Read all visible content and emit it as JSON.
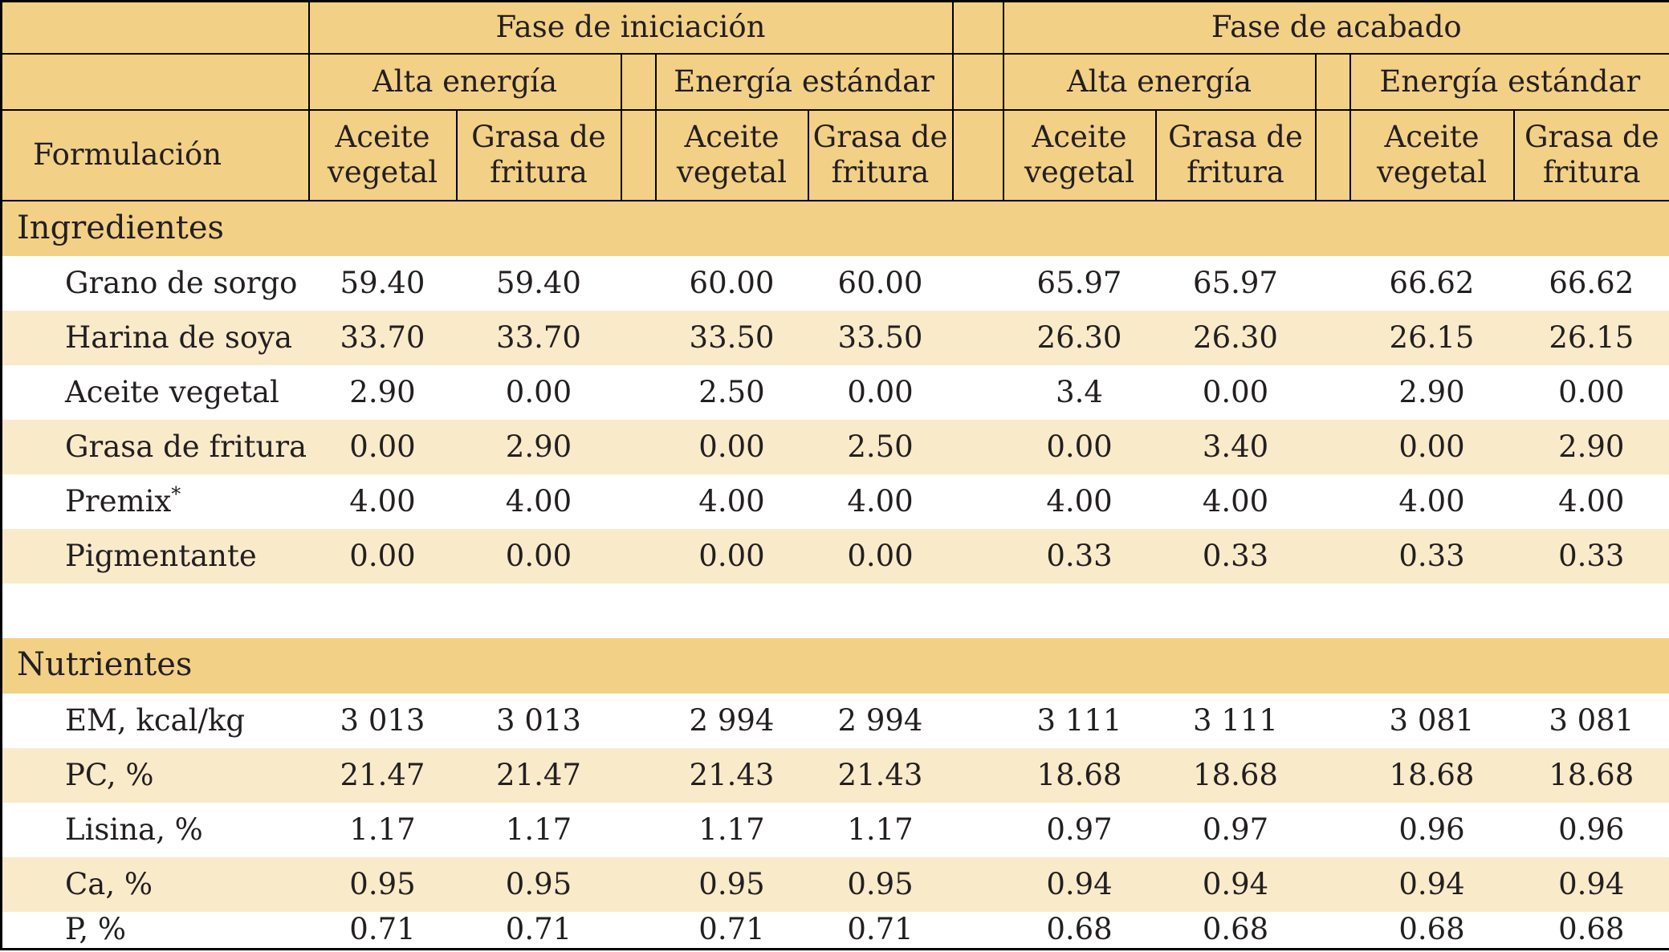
{
  "colors": {
    "header_gold": "#f2d086",
    "row_stripe_cream": "#f9eaca",
    "border_black": "#000000",
    "text_dark": "#231f20",
    "row_white": "#ffffff"
  },
  "header": {
    "corner_label": "Formulación",
    "phase_initiation": "Fase de iniciación",
    "phase_finishing": "Fase de acabado",
    "energy_high": "Alta energía",
    "energy_standard": "Energía estándar",
    "diet_oil": "Aceite vegetal",
    "diet_fat": "Grasa de fritura"
  },
  "sections": [
    {
      "title": "Ingredientes",
      "rows": [
        {
          "label": "Grano de sorgo",
          "values": [
            "59.40",
            "59.40",
            "60.00",
            "60.00",
            "65.97",
            "65.97",
            "66.62",
            "66.62"
          ]
        },
        {
          "label": "Harina de soya",
          "values": [
            "33.70",
            "33.70",
            "33.50",
            "33.50",
            "26.30",
            "26.30",
            "26.15",
            "26.15"
          ]
        },
        {
          "label": "Aceite vegetal",
          "values": [
            "2.90",
            "0.00",
            "2.50",
            "0.00",
            "3.4",
            "0.00",
            "2.90",
            "0.00"
          ]
        },
        {
          "label": "Grasa de fritura",
          "values": [
            "0.00",
            "2.90",
            "0.00",
            "2.50",
            "0.00",
            "3.40",
            "0.00",
            "2.90"
          ]
        },
        {
          "label": "Premix",
          "sup": "*",
          "values": [
            "4.00",
            "4.00",
            "4.00",
            "4.00",
            "4.00",
            "4.00",
            "4.00",
            "4.00"
          ]
        },
        {
          "label": "Pigmentante",
          "values": [
            "0.00",
            "0.00",
            "0.00",
            "0.00",
            "0.33",
            "0.33",
            "0.33",
            "0.33"
          ]
        }
      ]
    },
    {
      "title": "Nutrientes",
      "rows": [
        {
          "label": "EM, kcal/kg",
          "values": [
            "3 013",
            "3 013",
            "2 994",
            "2 994",
            "3 111",
            "3 111",
            "3 081",
            "3 081"
          ]
        },
        {
          "label": "PC, %",
          "values": [
            "21.47",
            "21.47",
            "21.43",
            "21.43",
            "18.68",
            "18.68",
            "18.68",
            "18.68"
          ]
        },
        {
          "label": "Lisina, %",
          "values": [
            "1.17",
            "1.17",
            "1.17",
            "1.17",
            "0.97",
            "0.97",
            "0.96",
            "0.96"
          ]
        },
        {
          "label": "Ca, %",
          "values": [
            "0.95",
            "0.95",
            "0.95",
            "0.95",
            "0.94",
            "0.94",
            "0.94",
            "0.94"
          ]
        },
        {
          "label": "P, %",
          "values": [
            "0.71",
            "0.71",
            "0.71",
            "0.71",
            "0.68",
            "0.68",
            "0.68",
            "0.68"
          ]
        }
      ]
    }
  ]
}
